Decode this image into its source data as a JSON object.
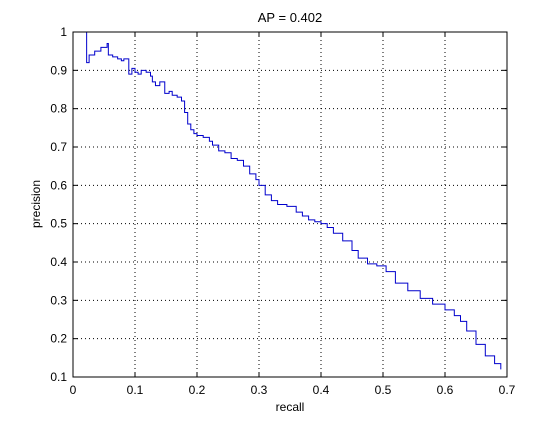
{
  "chart_data": {
    "type": "line",
    "title": "AP = 0.402",
    "xlabel": "recall",
    "ylabel": "precision",
    "xlim": [
      0,
      0.7
    ],
    "ylim": [
      0.1,
      1
    ],
    "xticks": [
      "0",
      "0.1",
      "0.2",
      "0.3",
      "0.4",
      "0.5",
      "0.6",
      "0.7"
    ],
    "yticks": [
      "0.1",
      "0.2",
      "0.3",
      "0.4",
      "0.5",
      "0.6",
      "0.7",
      "0.8",
      "0.9",
      "1"
    ],
    "grid": true,
    "line_color": "#0000cc",
    "series": [
      {
        "x": [
          0.022,
          0.022,
          0.026,
          0.035,
          0.045,
          0.055,
          0.057,
          0.064,
          0.072,
          0.078,
          0.082,
          0.09,
          0.095,
          0.1,
          0.105,
          0.11,
          0.118,
          0.125,
          0.128,
          0.133,
          0.14,
          0.148,
          0.155,
          0.16,
          0.168,
          0.175,
          0.18,
          0.185,
          0.19,
          0.195,
          0.2,
          0.21,
          0.22,
          0.225,
          0.235,
          0.245,
          0.255,
          0.265,
          0.275,
          0.285,
          0.295,
          0.3,
          0.31,
          0.32,
          0.33,
          0.345,
          0.36,
          0.37,
          0.38,
          0.39,
          0.4,
          0.41,
          0.42,
          0.435,
          0.45,
          0.46,
          0.475,
          0.49,
          0.505,
          0.52,
          0.54,
          0.56,
          0.58,
          0.6,
          0.615,
          0.625,
          0.635,
          0.65,
          0.665,
          0.68,
          0.69
        ],
        "y": [
          1.0,
          0.92,
          0.94,
          0.95,
          0.96,
          0.97,
          0.94,
          0.935,
          0.93,
          0.925,
          0.93,
          0.89,
          0.905,
          0.895,
          0.89,
          0.9,
          0.895,
          0.885,
          0.87,
          0.86,
          0.87,
          0.84,
          0.845,
          0.835,
          0.83,
          0.82,
          0.79,
          0.76,
          0.745,
          0.735,
          0.73,
          0.725,
          0.715,
          0.705,
          0.69,
          0.685,
          0.67,
          0.665,
          0.65,
          0.63,
          0.615,
          0.6,
          0.575,
          0.56,
          0.55,
          0.545,
          0.53,
          0.52,
          0.51,
          0.505,
          0.5,
          0.49,
          0.475,
          0.455,
          0.43,
          0.41,
          0.395,
          0.39,
          0.375,
          0.345,
          0.325,
          0.305,
          0.29,
          0.275,
          0.26,
          0.245,
          0.22,
          0.185,
          0.155,
          0.135,
          0.12
        ]
      }
    ]
  }
}
